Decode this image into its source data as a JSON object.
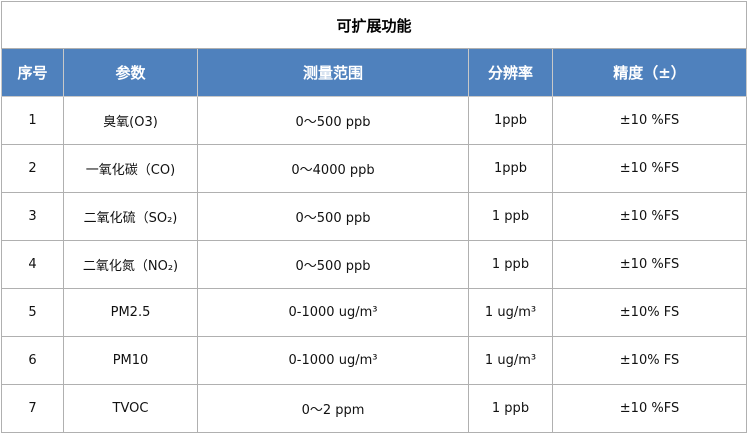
{
  "title": "可扩展功能",
  "header_color": "#4f81bd",
  "columns": [
    "序号",
    "参数",
    "测量范围",
    "分辨率",
    "精度（±）"
  ],
  "rows": [
    [
      "1",
      "臭氧(O3)",
      "0～500 ppb",
      "1ppb",
      "±10 %FS"
    ],
    [
      "2",
      "一氧化碳（CO)",
      "0～4000 ppb",
      "1ppb",
      "±10 %FS"
    ],
    [
      "3",
      "二氧化硫（SO₂)",
      "0～500 ppb",
      "1 ppb",
      "±10 %FS"
    ],
    [
      "4",
      "二氧化氮（NO₂)",
      "0～500 ppb",
      "1 ppb",
      "±10 %FS"
    ],
    [
      "5",
      "PM2.5",
      "0-1000 ug/m³",
      "1 ug/m³",
      "±10% FS"
    ],
    [
      "6",
      "PM10",
      "0-1000 ug/m³",
      "1 ug/m³",
      "±10% FS"
    ],
    [
      "7",
      "TVOC",
      "0～2 ppm",
      "1 ppb",
      "±10 %FS"
    ]
  ]
}
